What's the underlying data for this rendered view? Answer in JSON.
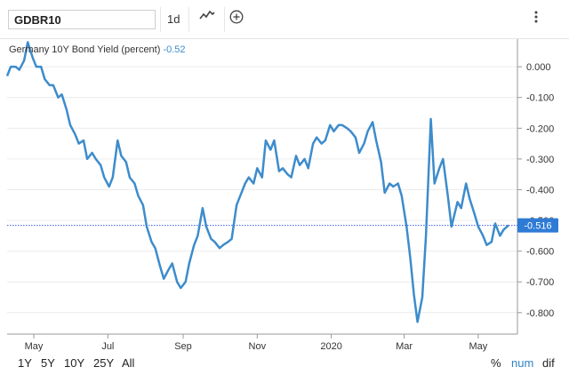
{
  "toolbar": {
    "symbol": "GDBR10",
    "interval": "1d",
    "chart_type_icon": "line-chart-icon",
    "add_icon": "plus-circle-icon",
    "menu_icon": "vertical-ellipsis-icon"
  },
  "footer": {
    "ranges": [
      "1Y",
      "5Y",
      "10Y",
      "25Y",
      "All"
    ],
    "modes": [
      "%",
      "num",
      "dif"
    ],
    "active_mode": "num"
  },
  "colors": {
    "line": "#3d8ccc",
    "current_marker": "#2e7bd6",
    "reference_line": "#3b5bdb"
  },
  "chart_data": {
    "type": "line",
    "legend_name": "Germany 10Y Bond Yield (percent)",
    "legend_value": "-0.52",
    "current_value_label": "-0.516",
    "current_value": -0.516,
    "x_tick_labels": [
      "May",
      "Jul",
      "Sep",
      "Nov",
      "2020",
      "Mar",
      "May"
    ],
    "y_tick_labels": [
      "0.000",
      "-0.100",
      "-0.200",
      "-0.300",
      "-0.400",
      "-0.500",
      "-0.600",
      "-0.700",
      "-0.800"
    ],
    "ylim": [
      -0.87,
      0.09
    ],
    "y_axis_side": "right",
    "grid": "horizontal",
    "series": [
      {
        "x": [
          "2019-04-09",
          "2019-04-12",
          "2019-04-16",
          "2019-04-19",
          "2019-04-23",
          "2019-04-26",
          "2019-04-30",
          "2019-05-03",
          "2019-05-07",
          "2019-05-10",
          "2019-05-14",
          "2019-05-17",
          "2019-05-21",
          "2019-05-24",
          "2019-05-28",
          "2019-05-31",
          "2019-06-04",
          "2019-06-07",
          "2019-06-11",
          "2019-06-14",
          "2019-06-18",
          "2019-06-21",
          "2019-06-25",
          "2019-06-28",
          "2019-07-02",
          "2019-07-05",
          "2019-07-09",
          "2019-07-12",
          "2019-07-16",
          "2019-07-19",
          "2019-07-23",
          "2019-07-26",
          "2019-07-30",
          "2019-08-02",
          "2019-08-06",
          "2019-08-09",
          "2019-08-13",
          "2019-08-16",
          "2019-08-20",
          "2019-08-23",
          "2019-08-27",
          "2019-08-30",
          "2019-09-03",
          "2019-09-06",
          "2019-09-10",
          "2019-09-13",
          "2019-09-17",
          "2019-09-20",
          "2019-09-24",
          "2019-09-27",
          "2019-10-01",
          "2019-10-04",
          "2019-10-08",
          "2019-10-11",
          "2019-10-15",
          "2019-10-18",
          "2019-10-22",
          "2019-10-25",
          "2019-10-29",
          "2019-11-01",
          "2019-11-05",
          "2019-11-08",
          "2019-11-12",
          "2019-11-15",
          "2019-11-19",
          "2019-11-22",
          "2019-11-26",
          "2019-11-29",
          "2019-12-03",
          "2019-12-06",
          "2019-12-10",
          "2019-12-13",
          "2019-12-17",
          "2019-12-20",
          "2019-12-24",
          "2019-12-27",
          "2019-12-31",
          "2020-01-03",
          "2020-01-07",
          "2020-01-10",
          "2020-01-14",
          "2020-01-17",
          "2020-01-21",
          "2020-01-24",
          "2020-01-28",
          "2020-01-31",
          "2020-02-04",
          "2020-02-07",
          "2020-02-11",
          "2020-02-14",
          "2020-02-18",
          "2020-02-21",
          "2020-02-25",
          "2020-02-28",
          "2020-03-03",
          "2020-03-06",
          "2020-03-09",
          "2020-03-12",
          "2020-03-16",
          "2020-03-19",
          "2020-03-23",
          "2020-03-26",
          "2020-03-30",
          "2020-04-02",
          "2020-04-06",
          "2020-04-09",
          "2020-04-14",
          "2020-04-17",
          "2020-04-21",
          "2020-04-24",
          "2020-04-28",
          "2020-05-01",
          "2020-05-05",
          "2020-05-08",
          "2020-05-12",
          "2020-05-15",
          "2020-05-19",
          "2020-05-22",
          "2020-05-26"
        ],
        "y": [
          -0.03,
          0.0,
          0.0,
          -0.01,
          0.02,
          0.08,
          0.03,
          0.0,
          0.0,
          -0.04,
          -0.06,
          -0.06,
          -0.1,
          -0.09,
          -0.14,
          -0.19,
          -0.22,
          -0.25,
          -0.24,
          -0.3,
          -0.28,
          -0.3,
          -0.32,
          -0.36,
          -0.39,
          -0.36,
          -0.24,
          -0.29,
          -0.31,
          -0.36,
          -0.38,
          -0.42,
          -0.45,
          -0.52,
          -0.57,
          -0.59,
          -0.65,
          -0.69,
          -0.66,
          -0.64,
          -0.7,
          -0.72,
          -0.7,
          -0.64,
          -0.58,
          -0.55,
          -0.46,
          -0.52,
          -0.56,
          -0.57,
          -0.59,
          -0.58,
          -0.57,
          -0.56,
          -0.45,
          -0.42,
          -0.38,
          -0.36,
          -0.38,
          -0.33,
          -0.36,
          -0.24,
          -0.27,
          -0.24,
          -0.34,
          -0.33,
          -0.35,
          -0.36,
          -0.29,
          -0.32,
          -0.3,
          -0.33,
          -0.25,
          -0.23,
          -0.25,
          -0.24,
          -0.19,
          -0.21,
          -0.19,
          -0.19,
          -0.2,
          -0.21,
          -0.23,
          -0.28,
          -0.25,
          -0.21,
          -0.18,
          -0.24,
          -0.31,
          -0.41,
          -0.38,
          -0.39,
          -0.38,
          -0.42,
          -0.52,
          -0.62,
          -0.74,
          -0.83,
          -0.75,
          -0.55,
          -0.17,
          -0.38,
          -0.33,
          -0.3,
          -0.42,
          -0.52,
          -0.44,
          -0.46,
          -0.38,
          -0.43,
          -0.48,
          -0.52,
          -0.55,
          -0.58,
          -0.57,
          -0.51,
          -0.55,
          -0.53,
          -0.516
        ]
      }
    ]
  }
}
